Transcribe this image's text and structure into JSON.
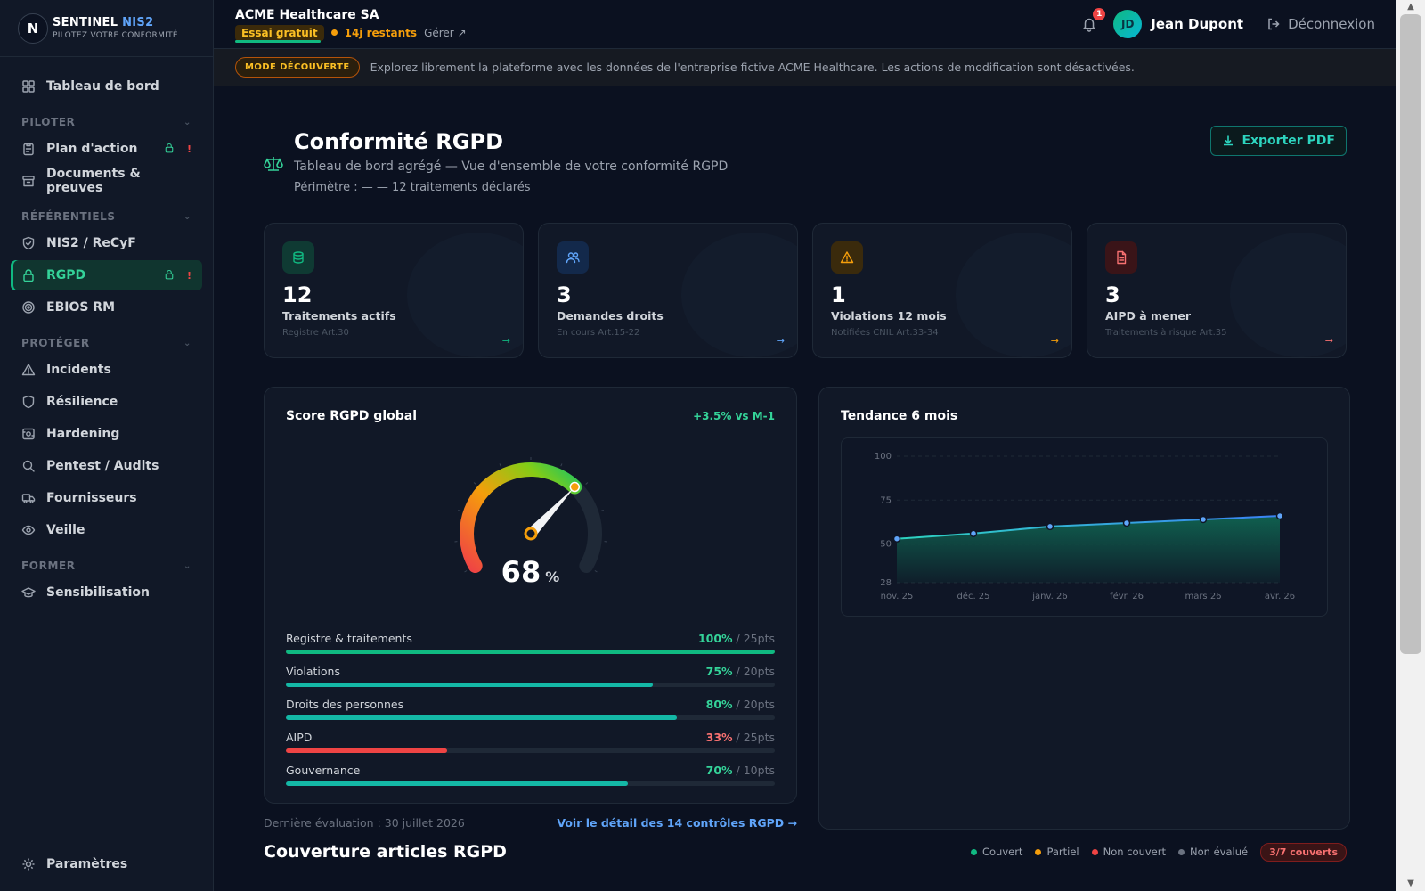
{
  "brand": {
    "name": "SENTINEL",
    "accent": "NIS2",
    "tagline": "PILOTEZ VOTRE CONFORMITÉ",
    "logo_letter": "N"
  },
  "sidebar": {
    "dashboard": "Tableau de bord",
    "sections": [
      {
        "label": "PILOTER",
        "items": [
          {
            "label": "Plan d'action",
            "icon": "clipboard-icon",
            "lock": true,
            "alert": true
          },
          {
            "label": "Documents & preuves",
            "icon": "archive-icon"
          }
        ]
      },
      {
        "label": "RÉFÉRENTIELS",
        "items": [
          {
            "label": "NIS2 / ReCyF",
            "icon": "shield-check-icon"
          },
          {
            "label": "RGPD",
            "icon": "lock-icon",
            "active": true,
            "lock": true,
            "alert": true
          },
          {
            "label": "EBIOS RM",
            "icon": "target-icon"
          }
        ]
      },
      {
        "label": "PROTÉGER",
        "items": [
          {
            "label": "Incidents",
            "icon": "warning-icon"
          },
          {
            "label": "Résilience",
            "icon": "shield-icon"
          },
          {
            "label": "Hardening",
            "icon": "hardening-icon"
          },
          {
            "label": "Pentest / Audits",
            "icon": "search-icon"
          },
          {
            "label": "Fournisseurs",
            "icon": "truck-icon"
          },
          {
            "label": "Veille",
            "icon": "eye-icon"
          }
        ]
      },
      {
        "label": "FORMER",
        "items": [
          {
            "label": "Sensibilisation",
            "icon": "graduation-icon"
          }
        ]
      }
    ],
    "settings": "Paramètres",
    "alert_mark": "!"
  },
  "topbar": {
    "org": "ACME Healthcare SA",
    "trial": "Essai gratuit",
    "remaining": "14j restants",
    "manage": "Gérer",
    "notif_count": "1",
    "user_initials": "JD",
    "user_name": "Jean Dupont",
    "logout": "Déconnexion"
  },
  "banner": {
    "pill": "MODE DÉCOUVERTE",
    "text": "Explorez librement la plateforme avec les données de l'entreprise fictive ACME Healthcare. Les actions de modification sont désactivées."
  },
  "page": {
    "title": "Conformité RGPD",
    "subtitle": "Tableau de bord agrégé — Vue d'ensemble de votre conformité RGPD",
    "scope": "Périmètre : — — 12 traitements déclarés",
    "export": "Exporter PDF"
  },
  "kpis": [
    {
      "value": "12",
      "label": "Traitements actifs",
      "sub": "Registre Art.30",
      "color": "#10b981",
      "bg": "#0f3a33",
      "icon": "database-icon"
    },
    {
      "value": "3",
      "label": "Demandes droits",
      "sub": "En cours Art.15-22",
      "color": "#60a5fa",
      "bg": "#13294b",
      "icon": "users-icon"
    },
    {
      "value": "1",
      "label": "Violations 12 mois",
      "sub": "Notifiées CNIL Art.33-34",
      "color": "#f59e0b",
      "bg": "#3a2a0c",
      "icon": "alert-triangle-icon"
    },
    {
      "value": "3",
      "label": "AIPD à mener",
      "sub": "Traitements à risque Art.35",
      "color": "#f87171",
      "bg": "#3a1418",
      "icon": "file-icon"
    }
  ],
  "score": {
    "title": "Score RGPD global",
    "delta": "+3.5% vs M-1",
    "value": "68",
    "value_num": 68,
    "unit": "%",
    "bars": [
      {
        "label": "Registre & traitements",
        "pct": "100%",
        "pts": "/ 25pts",
        "fill": 1.0,
        "color": "#10b981"
      },
      {
        "label": "Violations",
        "pct": "75%",
        "pts": "/ 20pts",
        "fill": 0.75,
        "color": "#14b8a6"
      },
      {
        "label": "Droits des personnes",
        "pct": "80%",
        "pts": "/ 20pts",
        "fill": 0.8,
        "color": "#14b8a6"
      },
      {
        "label": "AIPD",
        "pct": "33%",
        "pts": "/ 25pts",
        "fill": 0.33,
        "color": "#ef4444"
      },
      {
        "label": "Gouvernance",
        "pct": "70%",
        "pts": "/ 10pts",
        "fill": 0.7,
        "color": "#14b8a6"
      }
    ],
    "last_eval": "Dernière évaluation : 30 juillet 2026",
    "detail_link": "Voir le détail des 14 contrôles RGPD →"
  },
  "trend": {
    "title": "Tendance 6 mois"
  },
  "chart_data": {
    "type": "area",
    "x": [
      "nov. 25",
      "déc. 25",
      "janv. 26",
      "févr. 26",
      "mars 26",
      "avr. 26"
    ],
    "y_ticks": [
      "100",
      "75",
      "50",
      "28"
    ],
    "ylim": [
      28,
      100
    ],
    "series": [
      {
        "values": [
          53,
          56,
          60,
          62,
          64,
          66
        ]
      }
    ]
  },
  "coverage": {
    "title": "Couverture articles RGPD",
    "legend": [
      {
        "label": "Couvert",
        "color": "#10b981"
      },
      {
        "label": "Partiel",
        "color": "#f59e0b"
      },
      {
        "label": "Non couvert",
        "color": "#ef4444"
      },
      {
        "label": "Non évalué",
        "color": "#6b7280"
      }
    ],
    "badge": "3/7 couverts"
  }
}
